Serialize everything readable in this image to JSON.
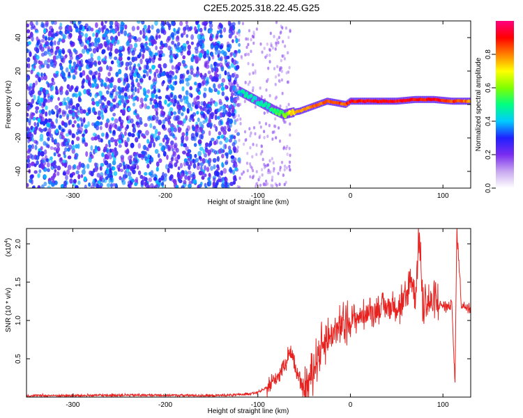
{
  "title": "C2E5.2025.318.22.45.G25",
  "chart_data": [
    {
      "type": "heatmap",
      "xlabel": "Height of straight line (km)",
      "ylabel": "Frequency (Hz)",
      "xlim": [
        -350,
        130
      ],
      "ylim": [
        -50,
        50
      ],
      "xticks": [
        -300,
        -200,
        -100,
        0,
        100
      ],
      "yticks": [
        -40,
        -20,
        0,
        20,
        40
      ],
      "xtick_labels": [
        "-300",
        "-200",
        "-100",
        "0",
        "100"
      ],
      "ytick_labels": [
        "-40",
        "-20",
        "0",
        "20",
        "40"
      ],
      "colorbar": {
        "label": "Normalized spectral amplitude",
        "range": [
          0,
          1
        ],
        "ticks": [
          0.0,
          0.2,
          0.4,
          0.6,
          0.8
        ],
        "tick_labels": [
          "0.0",
          "0.2",
          "0.4",
          "0.6",
          "0.8"
        ],
        "colors": [
          "#ffffff",
          "#c8a8f0",
          "#7a2cf0",
          "#2020ff",
          "#00ccff",
          "#00ff80",
          "#80ff00",
          "#ffff00",
          "#ff8000",
          "#ff0000",
          "#ff0080"
        ]
      },
      "ridge": {
        "x": [
          -120,
          -110,
          -100,
          -90,
          -80,
          -72,
          -65,
          -55,
          -45,
          -35,
          -25,
          -15,
          -5,
          0,
          10,
          30,
          50,
          70,
          90,
          110,
          130
        ],
        "frequency": [
          8,
          5,
          2,
          -1,
          -4,
          -6,
          -5,
          -4,
          -2,
          0,
          2,
          1,
          0,
          2,
          2,
          2,
          2,
          3,
          3,
          2,
          2
        ],
        "amplitude": [
          0.4,
          0.45,
          0.45,
          0.45,
          0.5,
          0.55,
          0.7,
          0.8,
          0.8,
          0.8,
          0.85,
          0.85,
          0.85,
          0.9,
          0.9,
          0.9,
          0.9,
          0.9,
          0.9,
          0.85,
          0.8
        ]
      }
    },
    {
      "type": "line",
      "xlabel": "Height of straight line (km)",
      "ylabel": "SNR (10 * v/v)",
      "y_scale_label": "(x10",
      "y_scale_exponent": "4",
      "xlim": [
        -350,
        130
      ],
      "ylim": [
        0,
        2.2
      ],
      "xticks": [
        -300,
        -200,
        -100,
        0,
        100
      ],
      "yticks": [
        0.5,
        1.0,
        1.5,
        2.0
      ],
      "xtick_labels": [
        "-300",
        "-200",
        "-100",
        "0",
        "100"
      ],
      "ytick_labels": [
        "0.5",
        "1.0",
        "1.5",
        "2.0"
      ],
      "color": "#e8211e",
      "series": [
        {
          "name": "SNR",
          "x": [
            -350,
            -300,
            -250,
            -200,
            -150,
            -120,
            -100,
            -90,
            -80,
            -70,
            -65,
            -60,
            -55,
            -50,
            -45,
            -40,
            -35,
            -30,
            -25,
            -20,
            -10,
            0,
            10,
            20,
            30,
            40,
            50,
            60,
            65,
            70,
            75,
            78,
            80,
            90,
            100,
            105,
            110,
            113,
            115,
            120,
            130
          ],
          "y": [
            0.02,
            0.02,
            0.025,
            0.025,
            0.02,
            0.03,
            0.06,
            0.12,
            0.25,
            0.45,
            0.62,
            0.4,
            0.2,
            0.08,
            0.2,
            0.35,
            0.55,
            0.7,
            0.75,
            0.82,
            0.92,
            1.0,
            1.05,
            1.1,
            1.15,
            1.18,
            1.2,
            1.22,
            1.6,
            1.3,
            2.15,
            1.1,
            1.25,
            1.22,
            1.2,
            1.18,
            1.2,
            0.1,
            2.2,
            1.2,
            1.18
          ]
        }
      ]
    }
  ]
}
